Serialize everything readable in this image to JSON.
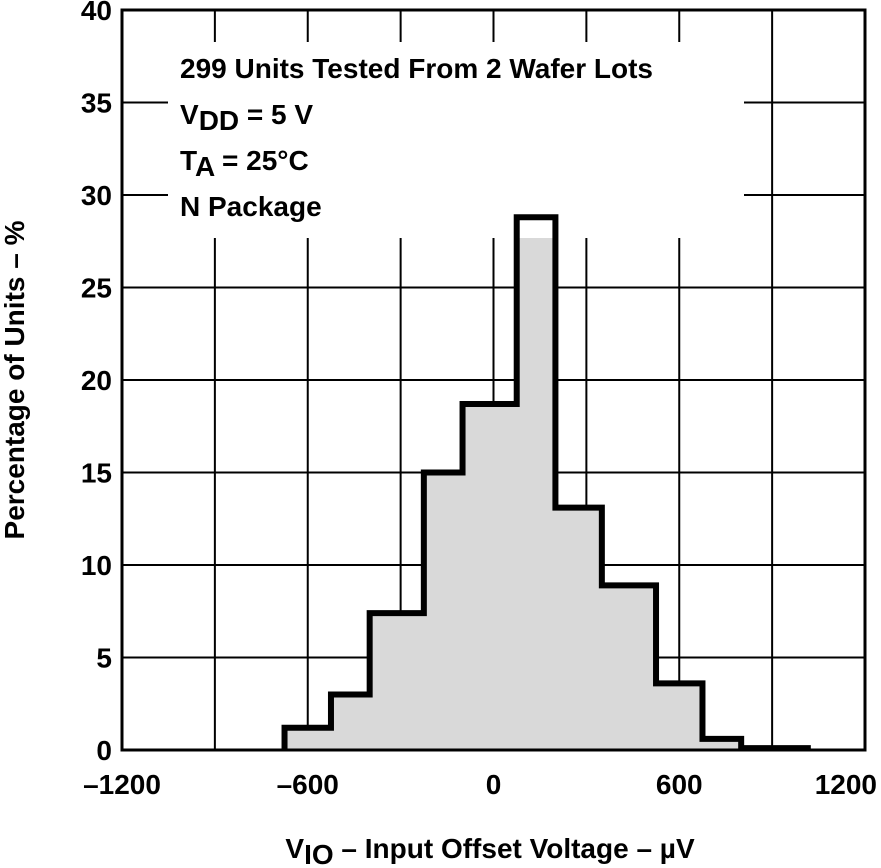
{
  "chart_data": {
    "type": "bar",
    "xlabel": {
      "main": "V",
      "sub": "IO",
      "rest": " – Input Offset Voltage – µV"
    },
    "ylabel": "Percentage of Units – %",
    "xlim": [
      -1200,
      1200
    ],
    "ylim": [
      0,
      40
    ],
    "x_ticks": [
      -1200,
      -600,
      0,
      600,
      1200
    ],
    "x_tick_labels": [
      "–1200",
      "–600",
      "0",
      "600",
      "1200"
    ],
    "y_ticks": [
      0,
      5,
      10,
      15,
      20,
      25,
      30,
      35,
      40
    ],
    "y_tick_labels": [
      "0",
      "5",
      "10",
      "15",
      "20",
      "25",
      "30",
      "35",
      "40"
    ],
    "x_grid_step": 300,
    "grid": true,
    "bin_edges": [
      -675,
      -525,
      -400,
      -225,
      -100,
      75,
      200,
      350,
      525,
      675,
      800,
      1025
    ],
    "values": [
      1.2,
      3.0,
      7.4,
      15.0,
      18.7,
      28.8,
      13.1,
      8.9,
      3.6,
      0.6,
      0.1
    ],
    "fill_color": "#d9d9d9",
    "line_color": "#000000",
    "annotation": {
      "line1": "299 Units Tested From 2 Wafer Lots",
      "line2": {
        "main": "V",
        "sub": "DD",
        "rest": " = 5 V"
      },
      "line3": {
        "main": "T",
        "sub": "A",
        "rest": " = 25°C"
      },
      "line4": "N Package"
    }
  }
}
